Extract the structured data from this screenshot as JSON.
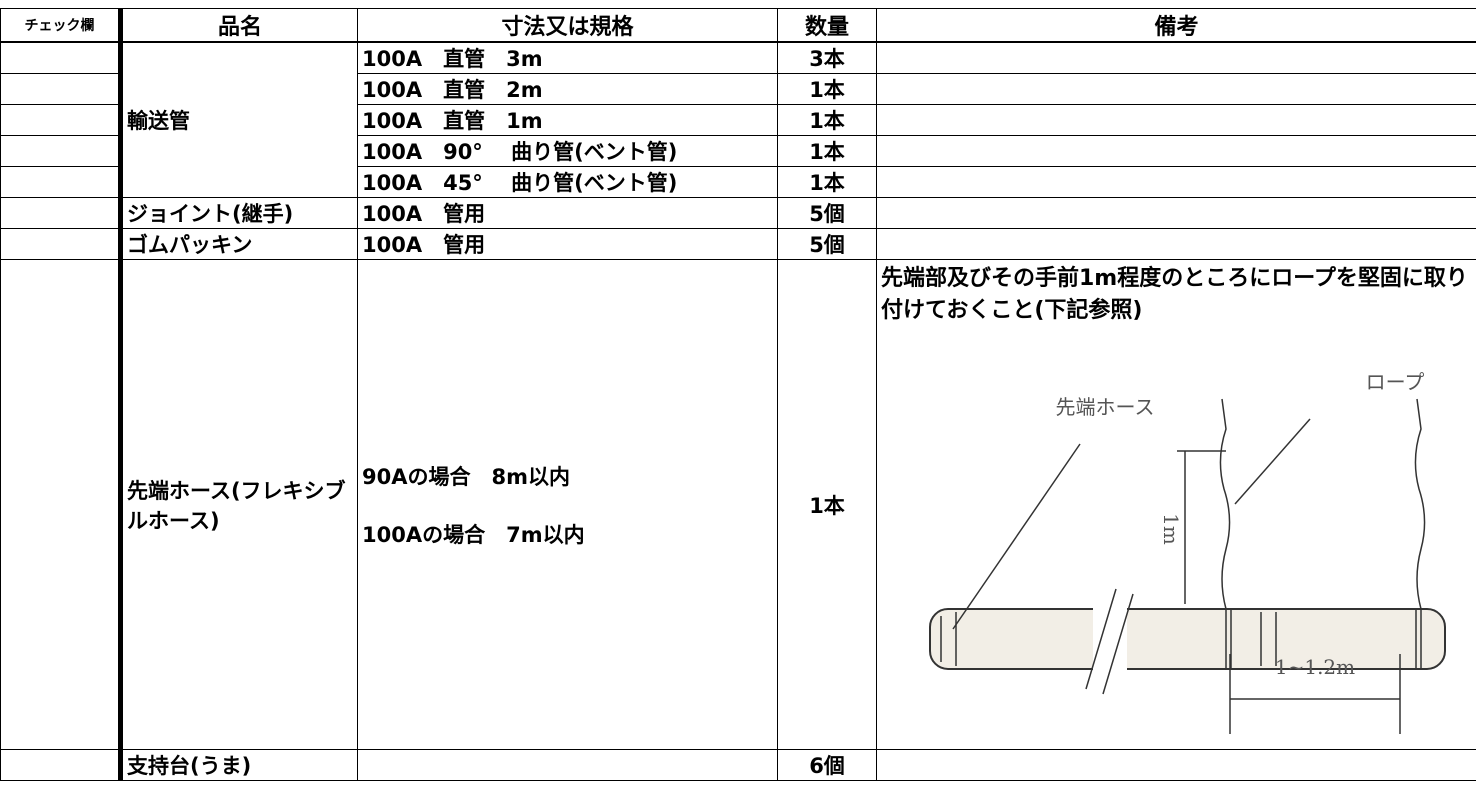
{
  "table": {
    "headers": [
      "チェック欄",
      "品名",
      "寸法又は規格",
      "数量",
      "備考"
    ],
    "rows": [
      {
        "name": "輸送管",
        "spec": "100A　直管　3m",
        "qty": "3本"
      },
      {
        "spec": "100A　直管　2m",
        "qty": "1本"
      },
      {
        "spec": "100A　直管　1m",
        "qty": "1本"
      },
      {
        "spec": "100A　90°　 曲り管(ベント管)",
        "qty": "1本"
      },
      {
        "spec": "100A　45°　 曲り管(ベント管)",
        "qty": "1本"
      },
      {
        "name": "ジョイント(継手)",
        "spec": "100A　管用",
        "qty": "5個"
      },
      {
        "name": "ゴムパッキン",
        "spec": "100A　管用",
        "qty": "5個"
      },
      {
        "name": "先端ホース(フレキシブルホース)",
        "spec_lines": [
          "90Aの場合　8m以内",
          "100Aの場合　7m以内"
        ],
        "qty": "1本",
        "note": "先端部及びその手前1m程度のところにロープを堅固に取り付けておくこと(下記参照)"
      },
      {
        "name": "支持台(うま)",
        "qty": "6個"
      }
    ]
  },
  "illustration": {
    "labels": [
      "先端ホース",
      "ロープ",
      "1m",
      "1~1.2m"
    ]
  }
}
